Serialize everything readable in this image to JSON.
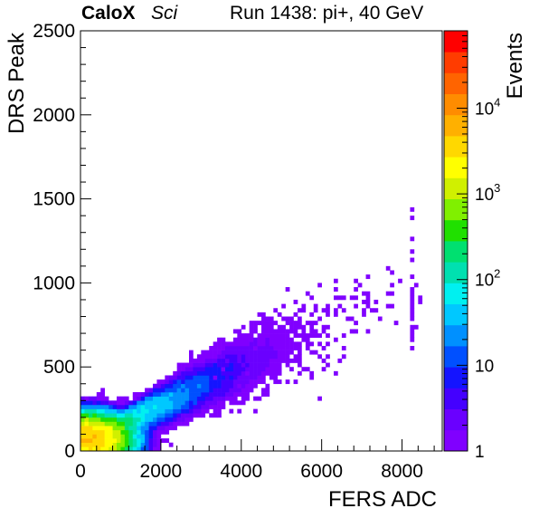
{
  "header": {
    "experiment": "CaloX",
    "tag": "Sci",
    "run": "Run 1438: pi+, 40 GeV"
  },
  "chart_data": {
    "type": "heatmap",
    "title": "",
    "xlabel": "FERS ADC",
    "ylabel": "DRS Peak",
    "zlabel": "Events",
    "xlim": [
      0,
      9000
    ],
    "ylim": [
      0,
      2500
    ],
    "zlim": [
      1,
      80000
    ],
    "zscale": "log",
    "bin_width_x": 100,
    "bin_width_y": 25,
    "xticks": [
      "0",
      "2000",
      "4000",
      "6000",
      "8000"
    ],
    "yticks": [
      "0",
      "500",
      "1000",
      "1500",
      "2000",
      "2500"
    ],
    "zticks": [
      "1",
      "10",
      "10^2",
      "10^3",
      "10^4"
    ],
    "palette": [
      "#8000ff",
      "#6a00ff",
      "#4400ff",
      "#1414ff",
      "#0050ff",
      "#0090ff",
      "#00c8ff",
      "#00f0f0",
      "#00e0b0",
      "#00e070",
      "#20e000",
      "#80f000",
      "#d0f000",
      "#ffff00",
      "#ffd800",
      "#ffb000",
      "#ff8c00",
      "#ff6400",
      "#ff3c00",
      "#ff0000"
    ],
    "features": [
      {
        "kind": "band",
        "x_range": [
          0,
          8300
        ],
        "slope": 0.115,
        "intercept": 40,
        "peak": [
          200,
          70
        ],
        "peak_events": 5000
      },
      {
        "kind": "column",
        "x": 8250,
        "y_range": [
          620,
          1520
        ]
      },
      {
        "kind": "outliers",
        "region": [
          3000,
          8000,
          300,
          1150
        ]
      }
    ]
  }
}
